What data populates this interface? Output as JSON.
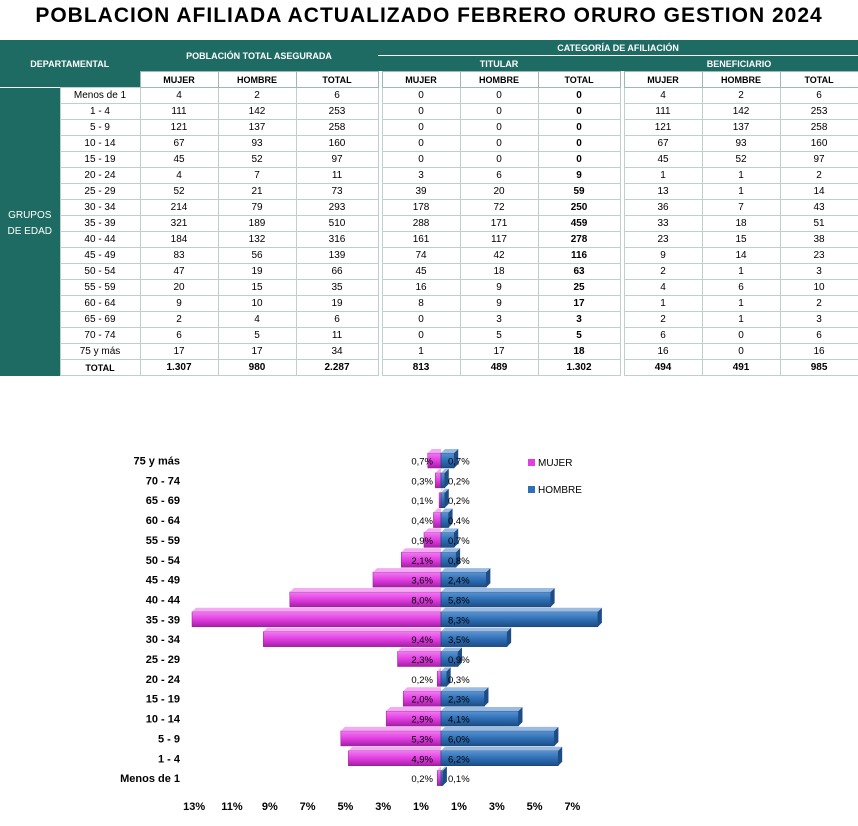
{
  "title": "POBLACION AFILIADA ACTUALIZADO FEBRERO  ORURO GESTION 2024",
  "table": {
    "h_departamental": "DEPARTAMENTAL",
    "h_poblacion": "POBLACIÓN TOTAL ASEGURADA",
    "h_categoria": "CATEGORÍA DE AFILIACIÓN",
    "h_titular": "TITULAR",
    "h_beneficiario": "BENEFICIARIO",
    "h_mujer": "MUJER",
    "h_hombre": "HOMBRE",
    "h_total": "TOTAL",
    "side_label_1": "GRUPOS",
    "side_label_2": "DE EDAD",
    "rows": [
      {
        "g": "Menos de 1",
        "v": [
          "4",
          "2",
          "6",
          "0",
          "0",
          "0",
          "4",
          "2",
          "6"
        ]
      },
      {
        "g": "1 - 4",
        "v": [
          "111",
          "142",
          "253",
          "0",
          "0",
          "0",
          "111",
          "142",
          "253"
        ]
      },
      {
        "g": "5 - 9",
        "v": [
          "121",
          "137",
          "258",
          "0",
          "0",
          "0",
          "121",
          "137",
          "258"
        ]
      },
      {
        "g": "10 - 14",
        "v": [
          "67",
          "93",
          "160",
          "0",
          "0",
          "0",
          "67",
          "93",
          "160"
        ]
      },
      {
        "g": "15 - 19",
        "v": [
          "45",
          "52",
          "97",
          "0",
          "0",
          "0",
          "45",
          "52",
          "97"
        ]
      },
      {
        "g": "20 - 24",
        "v": [
          "4",
          "7",
          "11",
          "3",
          "6",
          "9",
          "1",
          "1",
          "2"
        ]
      },
      {
        "g": "25 - 29",
        "v": [
          "52",
          "21",
          "73",
          "39",
          "20",
          "59",
          "13",
          "1",
          "14"
        ]
      },
      {
        "g": "30 - 34",
        "v": [
          "214",
          "79",
          "293",
          "178",
          "72",
          "250",
          "36",
          "7",
          "43"
        ]
      },
      {
        "g": "35 - 39",
        "v": [
          "321",
          "189",
          "510",
          "288",
          "171",
          "459",
          "33",
          "18",
          "51"
        ]
      },
      {
        "g": "40 - 44",
        "v": [
          "184",
          "132",
          "316",
          "161",
          "117",
          "278",
          "23",
          "15",
          "38"
        ]
      },
      {
        "g": "45 - 49",
        "v": [
          "83",
          "56",
          "139",
          "74",
          "42",
          "116",
          "9",
          "14",
          "23"
        ]
      },
      {
        "g": "50 - 54",
        "v": [
          "47",
          "19",
          "66",
          "45",
          "18",
          "63",
          "2",
          "1",
          "3"
        ]
      },
      {
        "g": "55 - 59",
        "v": [
          "20",
          "15",
          "35",
          "16",
          "9",
          "25",
          "4",
          "6",
          "10"
        ]
      },
      {
        "g": "60 - 64",
        "v": [
          "9",
          "10",
          "19",
          "8",
          "9",
          "17",
          "1",
          "1",
          "2"
        ]
      },
      {
        "g": "65 - 69",
        "v": [
          "2",
          "4",
          "6",
          "0",
          "3",
          "3",
          "2",
          "1",
          "3"
        ]
      },
      {
        "g": "70 - 74",
        "v": [
          "6",
          "5",
          "11",
          "0",
          "5",
          "5",
          "6",
          "0",
          "6"
        ]
      },
      {
        "g": "75 y más",
        "v": [
          "17",
          "17",
          "34",
          "1",
          "17",
          "18",
          "16",
          "0",
          "16"
        ]
      }
    ],
    "total_label": "TOTAL",
    "totals": [
      "1.307",
      "980",
      "2.287",
      "813",
      "489",
      "1.302",
      "494",
      "491",
      "985"
    ]
  },
  "chart_data": {
    "type": "bar",
    "categories": [
      "Menos de 1",
      "1 - 4",
      "5 - 9",
      "10 - 14",
      "15 - 19",
      "20 - 24",
      "25 - 29",
      "30 - 34",
      "35 - 39",
      "40 - 44",
      "45 - 49",
      "50 - 54",
      "55 - 59",
      "60 - 64",
      "65 - 69",
      "70 - 74",
      "75 y más"
    ],
    "series": [
      {
        "name": "MUJER",
        "color": "#e23ee2",
        "values": [
          0.2,
          4.9,
          5.3,
          2.9,
          2.0,
          0.2,
          2.3,
          9.4,
          14.0,
          8.0,
          3.6,
          2.1,
          0.9,
          0.4,
          0.1,
          0.3,
          0.7
        ],
        "labels": [
          "0,2%",
          "4,9%",
          "5,3%",
          "2,9%",
          "2,0%",
          "0,2%",
          "2,3%",
          "9,4%",
          "",
          "8,0%",
          "3,6%",
          "2,1%",
          "0,9%",
          "0,4%",
          "0,1%",
          "0,3%",
          "0,7%"
        ]
      },
      {
        "name": "HOMBRE",
        "color": "#2e6fb5",
        "values": [
          0.1,
          6.2,
          6.0,
          4.1,
          2.3,
          0.3,
          0.9,
          3.5,
          8.3,
          5.8,
          2.4,
          0.8,
          0.7,
          0.4,
          0.2,
          0.2,
          0.7
        ],
        "labels": [
          "0,1%",
          "6,2%",
          "6,0%",
          "4,1%",
          "2,3%",
          "0,3%",
          "0,9%",
          "3,5%",
          "8,3%",
          "5,8%",
          "2,4%",
          "0,8%",
          "0,7%",
          "0,4%",
          "0,2%",
          "0,2%",
          "0,7%"
        ]
      }
    ],
    "x_ticks_left": [
      "13%",
      "11%",
      "9%",
      "7%",
      "5%",
      "3%",
      "1%"
    ],
    "x_ticks_right": [
      "1%",
      "3%",
      "5%",
      "7%"
    ],
    "legend_position": "top-right",
    "grid": false
  }
}
